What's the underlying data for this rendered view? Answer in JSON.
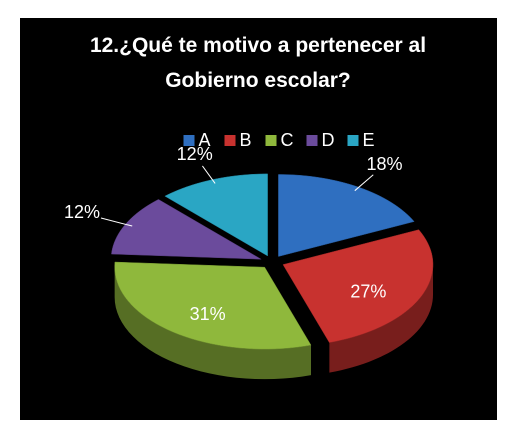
{
  "chart_data": {
    "type": "pie",
    "title": "12.¿Qué te motivo a pertenecer al Gobierno escolar?",
    "categories": [
      "A",
      "B",
      "C",
      "D",
      "E"
    ],
    "values": [
      18,
      27,
      31,
      12,
      12
    ],
    "value_labels": [
      "18%",
      "27%",
      "31%",
      "12%",
      "12%"
    ],
    "colors": [
      "#2f6fc0",
      "#c8322f",
      "#8fb83c",
      "#6b4b9c",
      "#2aa6c4"
    ],
    "legend": "top"
  }
}
